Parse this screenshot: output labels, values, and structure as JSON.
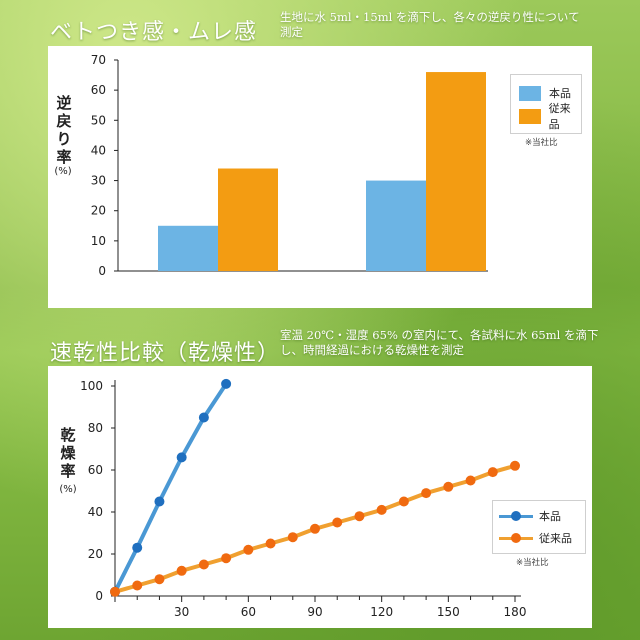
{
  "top": {
    "heading": "ベトつき感・ムレ感",
    "note": "生地に水 5ml・15ml を滴下し、各々の逆戻り性について測定"
  },
  "bottom": {
    "heading": "速乾性比較（乾燥性）",
    "note": "室温 20℃・湿度 65% の室内にて、各試料に水 65ml を滴下し、時間経過における乾燥性を測定"
  },
  "chart_data": [
    {
      "type": "bar",
      "ylabel": "逆戻り率",
      "yunit": "(%)",
      "ylim": [
        0,
        70
      ],
      "yticks": [
        0,
        10,
        20,
        30,
        40,
        50,
        60,
        70
      ],
      "categories": [
        "",
        ""
      ],
      "series": [
        {
          "name": "本品",
          "color": "#6cb4e4",
          "values": [
            15,
            30
          ]
        },
        {
          "name": "従来品",
          "color": "#f39c12",
          "values": [
            34,
            66
          ]
        }
      ],
      "footnote": "※当社比",
      "grid": false,
      "legend_position": "right"
    },
    {
      "type": "line",
      "ylabel": "乾燥率",
      "yunit": "(%)",
      "xlim": [
        0,
        180
      ],
      "ylim": [
        0,
        100
      ],
      "xticks": [
        30,
        60,
        90,
        120,
        150,
        180
      ],
      "yticks": [
        0,
        20,
        40,
        60,
        80,
        100
      ],
      "series": [
        {
          "name": "本品",
          "color": "#4a98d4",
          "marker": "#1f6fbf",
          "x": [
            0,
            10,
            20,
            30,
            40,
            50
          ],
          "y": [
            2,
            23,
            45,
            66,
            85,
            101
          ]
        },
        {
          "name": "従来品",
          "color": "#f0a030",
          "marker": "#f06a10",
          "x": [
            0,
            10,
            20,
            30,
            40,
            50,
            60,
            70,
            80,
            90,
            100,
            110,
            120,
            130,
            140,
            150,
            160,
            170,
            180
          ],
          "y": [
            2,
            5,
            8,
            12,
            15,
            18,
            22,
            25,
            28,
            32,
            35,
            38,
            41,
            45,
            49,
            52,
            55,
            59,
            62
          ]
        }
      ],
      "footnote": "※当社比",
      "grid": false,
      "legend_position": "bottom-right"
    }
  ]
}
